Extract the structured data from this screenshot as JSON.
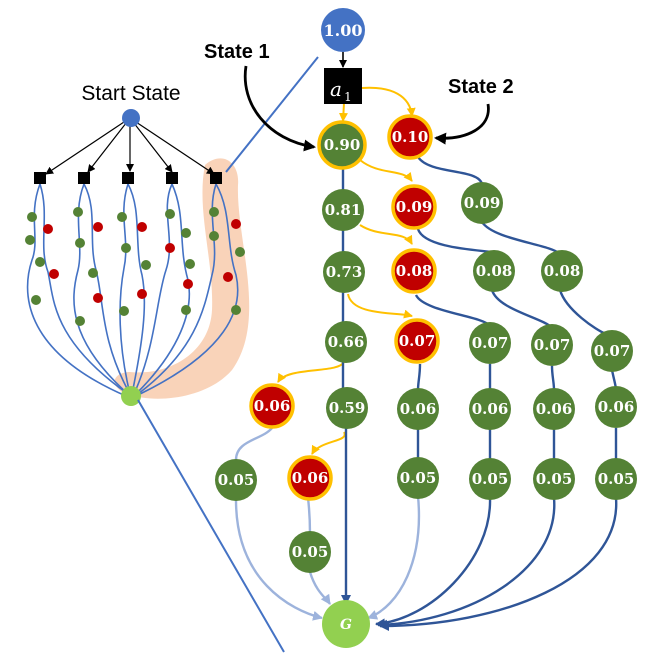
{
  "labels": {
    "start_state": "Start State",
    "state_1": "State 1",
    "state_2": "State 2"
  },
  "nodes": {
    "root": "1.00",
    "action": "a",
    "action_sub": "1",
    "goal": "G",
    "n_090": "0.90",
    "n_010": "0.10",
    "n_081": "0.81",
    "n_009r": "0.09",
    "n_009g": "0.09",
    "n_073": "0.73",
    "n_008r": "0.08",
    "n_008g1": "0.08",
    "n_008g2": "0.08",
    "n_066": "0.66",
    "n_007r": "0.07",
    "n_007a": "0.07",
    "n_007b": "0.07",
    "n_007c": "0.07",
    "n_006r1": "0.06",
    "n_059": "0.59",
    "n_006a": "0.06",
    "n_006b": "0.06",
    "n_006c": "0.06",
    "n_006d": "0.06",
    "n_005a": "0.05",
    "n_006r2": "0.06",
    "n_005b": "0.05",
    "n_005c": "0.05",
    "n_005d": "0.05",
    "n_005e": "0.05",
    "n_005f": "0.05"
  },
  "colors": {
    "state_blue": "#4472c4",
    "prob_green": "#4f7a32",
    "high_red": "#c00000",
    "highlight_gold": "#ffc000",
    "goal_green": "#92d050",
    "edge_blue": "#2f5597",
    "edge_light": "#9db3dc",
    "highlight_peach": "#f8cbad"
  }
}
